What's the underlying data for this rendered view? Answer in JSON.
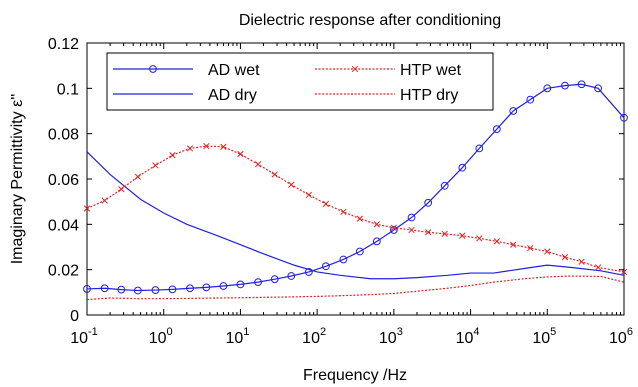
{
  "chart_data": {
    "type": "line",
    "title": "Dielectric response after conditioning",
    "xlabel": "Frequency /Hz",
    "ylabel": "Imaginary Permittivity ε''",
    "xscale": "log",
    "xlim": [
      0.1,
      1000000
    ],
    "ylim": [
      0,
      0.12
    ],
    "x_tick_exponents": [
      "-1",
      "0",
      "1",
      "2",
      "3",
      "4",
      "5",
      "6"
    ],
    "y_tick_labels": [
      "0",
      "0.02",
      "0.04",
      "0.06",
      "0.08",
      "0.1",
      "0.12"
    ],
    "legend_position": "top-inside",
    "grid": false,
    "series": [
      {
        "name": "AD wet",
        "color": "#2020e0",
        "style": "solid",
        "marker": "circle",
        "x": [
          0.1,
          0.17,
          0.28,
          0.46,
          0.78,
          1.3,
          2.2,
          3.6,
          6,
          10,
          17,
          28,
          46,
          78,
          130,
          220,
          360,
          600,
          1000,
          1700,
          2800,
          4600,
          7800,
          13000,
          22000,
          36000,
          60000,
          100000,
          170000,
          280000,
          460000,
          1000000
        ],
        "y": [
          0.0115,
          0.0118,
          0.0112,
          0.0108,
          0.011,
          0.0113,
          0.0118,
          0.0122,
          0.0128,
          0.0135,
          0.0145,
          0.0158,
          0.0172,
          0.019,
          0.0215,
          0.0245,
          0.028,
          0.0325,
          0.0375,
          0.043,
          0.0495,
          0.057,
          0.065,
          0.0735,
          0.082,
          0.09,
          0.095,
          0.1,
          0.1012,
          0.1018,
          0.1,
          0.087
        ]
      },
      {
        "name": "AD dry",
        "color": "#2020e0",
        "style": "solid",
        "marker": "none",
        "x": [
          0.1,
          0.2,
          0.5,
          1,
          2,
          5,
          10,
          20,
          50,
          100,
          200,
          500,
          1000,
          2000,
          5000,
          10000,
          20000,
          50000,
          100000,
          200000,
          500000,
          1000000
        ],
        "y": [
          0.072,
          0.062,
          0.051,
          0.045,
          0.04,
          0.035,
          0.031,
          0.027,
          0.022,
          0.019,
          0.0175,
          0.016,
          0.016,
          0.0165,
          0.0175,
          0.0185,
          0.0185,
          0.0205,
          0.022,
          0.021,
          0.0195,
          0.0175
        ]
      },
      {
        "name": "HTP wet",
        "color": "#e02020",
        "style": "dotted",
        "marker": "x",
        "x": [
          0.1,
          0.17,
          0.28,
          0.46,
          0.78,
          1.3,
          2.2,
          3.6,
          6,
          10,
          17,
          28,
          46,
          78,
          130,
          220,
          360,
          600,
          1000,
          1700,
          2800,
          4600,
          7800,
          13000,
          22000,
          36000,
          60000,
          100000,
          170000,
          280000,
          460000,
          1000000
        ],
        "y": [
          0.047,
          0.0505,
          0.0555,
          0.061,
          0.066,
          0.0705,
          0.0735,
          0.0745,
          0.0742,
          0.071,
          0.0665,
          0.062,
          0.0575,
          0.053,
          0.049,
          0.0455,
          0.0425,
          0.04,
          0.0385,
          0.0375,
          0.0365,
          0.0358,
          0.035,
          0.0338,
          0.0325,
          0.031,
          0.0295,
          0.028,
          0.0255,
          0.0235,
          0.021,
          0.019
        ]
      },
      {
        "name": "HTP dry",
        "color": "#e02020",
        "style": "dotted",
        "marker": "none",
        "x": [
          0.1,
          0.2,
          0.5,
          1,
          2,
          5,
          10,
          20,
          50,
          100,
          200,
          500,
          1000,
          2000,
          5000,
          10000,
          20000,
          50000,
          100000,
          200000,
          500000,
          1000000
        ],
        "y": [
          0.0068,
          0.0075,
          0.0072,
          0.0072,
          0.0073,
          0.0075,
          0.0076,
          0.0078,
          0.008,
          0.0082,
          0.0085,
          0.009,
          0.0095,
          0.0105,
          0.0118,
          0.013,
          0.0145,
          0.016,
          0.0168,
          0.0172,
          0.017,
          0.0145
        ]
      }
    ]
  }
}
